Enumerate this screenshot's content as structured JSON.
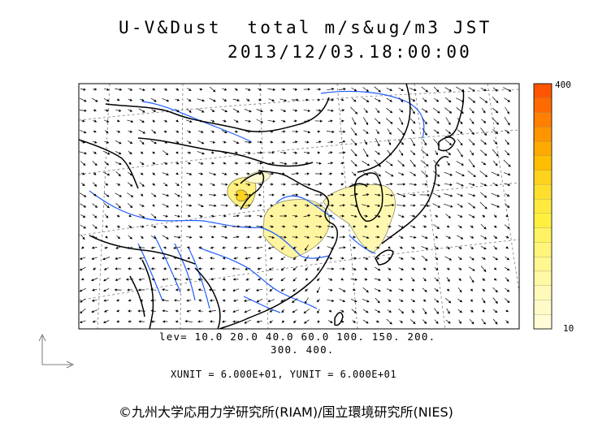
{
  "header": {
    "title": "U-V&Dust  total m/s&ug/m3 JST",
    "datetime": "2013/12/03.18:00:00"
  },
  "map": {
    "region": "East Asia",
    "layers": [
      "wind-vectors",
      "dust-concentration",
      "coastlines",
      "rivers",
      "graticule"
    ],
    "coastline_color": "#000000",
    "river_color": "#1e5bff",
    "graticule_color": "#7a7a7a"
  },
  "legend": {
    "levels_line1": "lev= 10.0 20.0 40.0 60.0 100. 150. 200.",
    "levels_line2": "300. 400.",
    "units": "XUNIT = 6.000E+01, YUNIT = 6.000E+01"
  },
  "colorbar": {
    "max_label": "400",
    "min_label": "10",
    "colors": [
      "#ff5500",
      "#ff6a00",
      "#ff7f00",
      "#ff9500",
      "#ffaa00",
      "#ffbf00",
      "#ffd21e",
      "#ffdf2e",
      "#ffe93f",
      "#fff040",
      "#fff363",
      "#fff57a",
      "#fff790",
      "#fff8a5",
      "#fffab9",
      "#fffbc9",
      "#fffcd6"
    ]
  },
  "credit": "©九州大学応用力学研究所(RIAM)/国立環境研究所(NIES)"
}
